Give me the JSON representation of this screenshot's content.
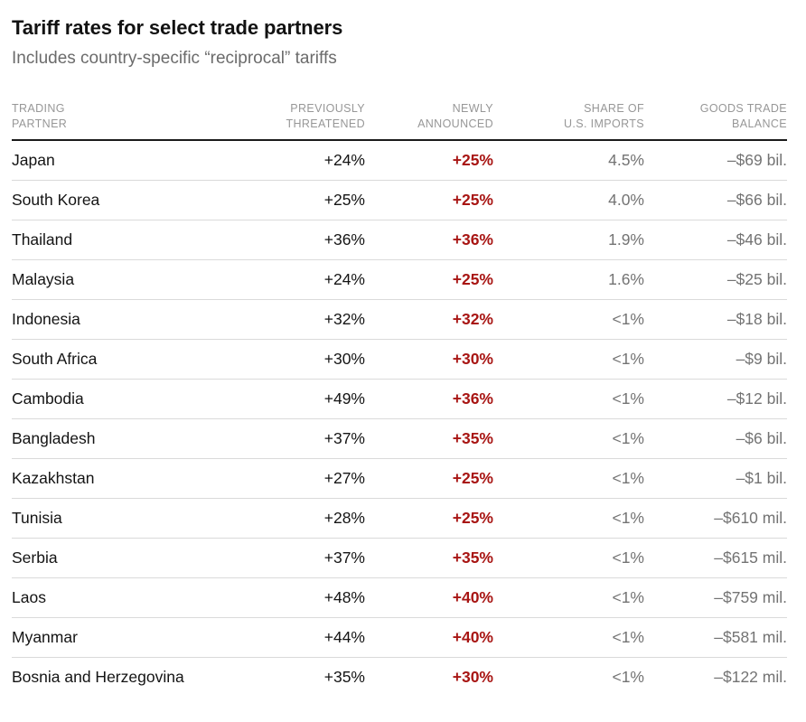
{
  "header": {
    "title": "Tariff rates for select trade partners",
    "subtitle": "Includes country-specific “reciprocal” tariffs"
  },
  "colors": {
    "accent_red": "#a81513",
    "value_gray": "#737373",
    "header_gray": "#979797",
    "text_black": "#141414",
    "rule_dark": "#1b1b1b",
    "rule_light": "#dadada"
  },
  "chart_data": {
    "type": "table",
    "title": "Tariff rates for select trade partners",
    "subtitle": "Includes country-specific “reciprocal” tariffs",
    "columns": [
      {
        "label": "TRADING\nPARTNER",
        "align": "left"
      },
      {
        "label": "PREVIOUSLY\nTHREATENED",
        "align": "right"
      },
      {
        "label": "NEWLY\nANNOUNCED",
        "align": "right"
      },
      {
        "label": "SHARE OF\nU.S. IMPORTS",
        "align": "right"
      },
      {
        "label": "GOODS TRADE\nBALANCE",
        "align": "right"
      }
    ],
    "rows": [
      {
        "partner": "Japan",
        "previously_threatened": "+24%",
        "newly_announced": "+25%",
        "share_of_us_imports": "4.5%",
        "goods_trade_balance": "–$69 bil."
      },
      {
        "partner": "South Korea",
        "previously_threatened": "+25%",
        "newly_announced": "+25%",
        "share_of_us_imports": "4.0%",
        "goods_trade_balance": "–$66 bil."
      },
      {
        "partner": "Thailand",
        "previously_threatened": "+36%",
        "newly_announced": "+36%",
        "share_of_us_imports": "1.9%",
        "goods_trade_balance": "–$46 bil."
      },
      {
        "partner": "Malaysia",
        "previously_threatened": "+24%",
        "newly_announced": "+25%",
        "share_of_us_imports": "1.6%",
        "goods_trade_balance": "–$25 bil."
      },
      {
        "partner": "Indonesia",
        "previously_threatened": "+32%",
        "newly_announced": "+32%",
        "share_of_us_imports": "<1%",
        "goods_trade_balance": "–$18 bil."
      },
      {
        "partner": "South Africa",
        "previously_threatened": "+30%",
        "newly_announced": "+30%",
        "share_of_us_imports": "<1%",
        "goods_trade_balance": "–$9 bil."
      },
      {
        "partner": "Cambodia",
        "previously_threatened": "+49%",
        "newly_announced": "+36%",
        "share_of_us_imports": "<1%",
        "goods_trade_balance": "–$12 bil."
      },
      {
        "partner": "Bangladesh",
        "previously_threatened": "+37%",
        "newly_announced": "+35%",
        "share_of_us_imports": "<1%",
        "goods_trade_balance": "–$6 bil."
      },
      {
        "partner": "Kazakhstan",
        "previously_threatened": "+27%",
        "newly_announced": "+25%",
        "share_of_us_imports": "<1%",
        "goods_trade_balance": "–$1 bil."
      },
      {
        "partner": "Tunisia",
        "previously_threatened": "+28%",
        "newly_announced": "+25%",
        "share_of_us_imports": "<1%",
        "goods_trade_balance": "–$610 mil."
      },
      {
        "partner": "Serbia",
        "previously_threatened": "+37%",
        "newly_announced": "+35%",
        "share_of_us_imports": "<1%",
        "goods_trade_balance": "–$615 mil."
      },
      {
        "partner": "Laos",
        "previously_threatened": "+48%",
        "newly_announced": "+40%",
        "share_of_us_imports": "<1%",
        "goods_trade_balance": "–$759 mil."
      },
      {
        "partner": "Myanmar",
        "previously_threatened": "+44%",
        "newly_announced": "+40%",
        "share_of_us_imports": "<1%",
        "goods_trade_balance": "–$581 mil."
      },
      {
        "partner": "Bosnia and Herzegovina",
        "previously_threatened": "+35%",
        "newly_announced": "+30%",
        "share_of_us_imports": "<1%",
        "goods_trade_balance": "–$122 mil."
      }
    ]
  }
}
